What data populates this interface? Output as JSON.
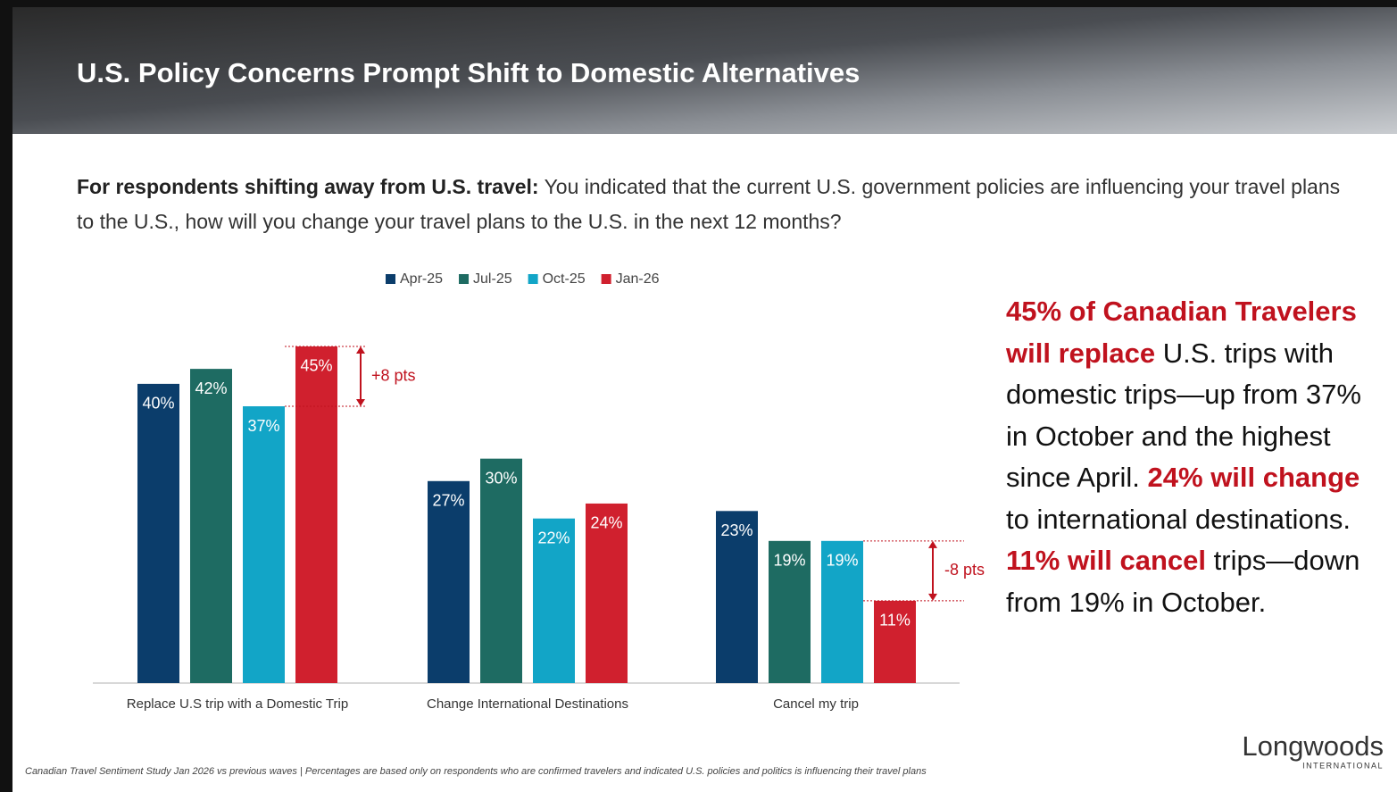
{
  "header": {
    "title": "U.S. Policy Concerns Prompt Shift to Domestic Alternatives"
  },
  "question": {
    "lead": "For respondents shifting away from U.S. travel:",
    "text": "You indicated that the current U.S. government policies are influencing your travel plans to the U.S., how will you change your travel plans to the U.S. in the next 12 months?"
  },
  "chart_data": {
    "type": "bar",
    "categories": [
      "Replace U.S trip with a Domestic Trip",
      "Change International Destinations",
      "Cancel my trip"
    ],
    "series": [
      {
        "name": "Apr-25",
        "color": "#0b3d6b",
        "values": [
          40,
          27,
          23
        ],
        "value_labels": [
          "40%",
          "27%",
          "23%"
        ]
      },
      {
        "name": "Jul-25",
        "color": "#1e6b62",
        "values": [
          42,
          30,
          19
        ],
        "value_labels": [
          "42%",
          "30%",
          "19%"
        ]
      },
      {
        "name": "Oct-25",
        "color": "#12a5c7",
        "values": [
          37,
          22,
          19
        ],
        "value_labels": [
          "37%",
          "22%",
          "19%"
        ]
      },
      {
        "name": "Jan-26",
        "color": "#d0202e",
        "values": [
          45,
          24,
          11
        ],
        "value_labels": [
          "45%",
          "24%",
          "11%"
        ]
      }
    ],
    "annotations": [
      "+8 pts",
      "-8 pts"
    ],
    "legend": "top"
  },
  "callout": [
    {
      "text": "45% of Canadian Travelers will replace",
      "emphasis": true
    },
    {
      "text": "U.S. trips with domestic trips—up from 37% in October and the highest since April.",
      "emphasis": false
    },
    {
      "text": "24% will change",
      "emphasis": true
    },
    {
      "text": "to international destinations.",
      "emphasis": false
    },
    {
      "text": "11% will cancel",
      "emphasis": true
    },
    {
      "text": "trips—down from 19% in October.",
      "emphasis": false
    }
  ],
  "footnote": "Canadian Travel Sentiment Study Jan 2026 vs previous waves | Percentages are based only on respondents who are confirmed travelers and indicated U.S. policies and politics is influencing their travel plans",
  "logo": {
    "name": "Longwoods",
    "sub": "INTERNATIONAL"
  }
}
